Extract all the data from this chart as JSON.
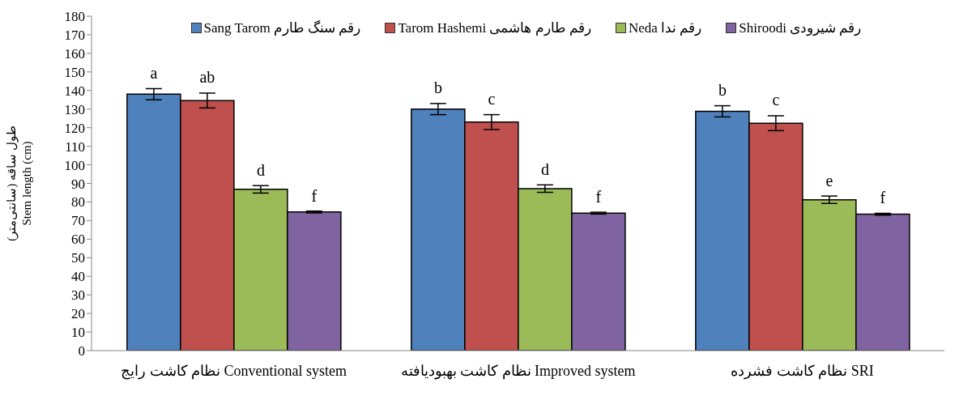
{
  "chart_data": {
    "type": "bar",
    "ylabel": "طول ساقه (سانتی‌متر)\nStem length (cm)",
    "categories": [
      "نظام کاشت رایج Conventional system",
      "نظام کاشت بهبودیافته Improved system",
      "نظام کاشت فشرده SRI"
    ],
    "series": [
      {
        "name": "Sang Tarom رقم سنگ طارم",
        "color": "#4f81bd",
        "values": [
          138,
          130,
          128.8
        ],
        "errors": [
          3,
          3,
          3
        ],
        "value_labels": [
          "a",
          "b",
          "b"
        ]
      },
      {
        "name": "Tarom Hashemi رقم طارم هاشمی",
        "color": "#c0504d",
        "values": [
          134.6,
          123,
          122.4
        ],
        "errors": [
          4,
          4,
          4
        ],
        "value_labels": [
          "ab",
          "c",
          "c"
        ]
      },
      {
        "name": "Neda رقم ندا",
        "color": "#9bbb59",
        "values": [
          86.8,
          87.2,
          81.2
        ],
        "errors": [
          2,
          2,
          2
        ],
        "value_labels": [
          "d",
          "d",
          "e"
        ]
      },
      {
        "name": "Shiroodi رقم شیرودی",
        "color": "#8064a2",
        "values": [
          74.6,
          74,
          73.4
        ],
        "errors": [
          0.5,
          0.5,
          0.5
        ],
        "value_labels": [
          "f",
          "f",
          "f"
        ]
      }
    ],
    "ylim": [
      0,
      180
    ],
    "yticks": [
      0,
      10,
      20,
      30,
      40,
      50,
      60,
      70,
      80,
      90,
      100,
      110,
      120,
      130,
      140,
      150,
      160,
      170,
      180
    ],
    "grid": false,
    "legend": "top"
  }
}
